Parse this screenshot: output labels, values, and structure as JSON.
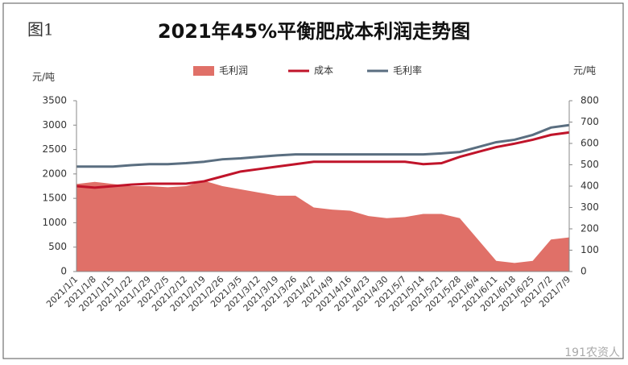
{
  "figure_label": "图1",
  "watermark": "191农资人",
  "chart_data": {
    "type": "combo",
    "title": "2021年45%平衡肥成本利润走势图",
    "ylabel": "元/吨",
    "y2label": "元/吨",
    "categories": [
      "2021/1/1",
      "2021/1/8",
      "2021/1/15",
      "2021/1/22",
      "2021/1/29",
      "2021/2/5",
      "2021/2/12",
      "2021/2/19",
      "2021/2/26",
      "2021/3/5",
      "2021/3/12",
      "2021/3/19",
      "2021/3/26",
      "2021/4/2",
      "2021/4/9",
      "2021/4/16",
      "2021/4/23",
      "2021/4/30",
      "2021/5/7",
      "2021/5/14",
      "2021/5/21",
      "2021/5/28",
      "2021/6/4",
      "2021/6/11",
      "2021/6/18",
      "2021/6/25",
      "2021/7/2",
      "2021/7/9"
    ],
    "series": [
      {
        "name": "毛利润",
        "kind": "area",
        "axis": "y2",
        "color": "#e07068",
        "values": [
          410,
          420,
          410,
          400,
          400,
          395,
          400,
          425,
          400,
          385,
          370,
          355,
          355,
          300,
          290,
          285,
          260,
          250,
          255,
          270,
          270,
          250,
          150,
          50,
          40,
          50,
          150,
          160
        ]
      },
      {
        "name": "成本",
        "kind": "line",
        "color": "#c0142a",
        "values": [
          1750,
          1720,
          1750,
          1780,
          1800,
          1800,
          1800,
          1850,
          1950,
          2050,
          2100,
          2150,
          2200,
          2250,
          2250,
          2250,
          2250,
          2250,
          2250,
          2200,
          2220,
          2350,
          2450,
          2550,
          2620,
          2700,
          2800,
          2850
        ]
      },
      {
        "name": "毛利率",
        "kind": "line",
        "color": "#5a6e80",
        "values": [
          2150,
          2150,
          2150,
          2180,
          2200,
          2200,
          2220,
          2250,
          2300,
          2320,
          2350,
          2380,
          2400,
          2400,
          2400,
          2400,
          2400,
          2400,
          2400,
          2400,
          2420,
          2450,
          2550,
          2650,
          2700,
          2800,
          2950,
          3000
        ]
      }
    ],
    "ylim": [
      0,
      3500
    ],
    "yticks": [
      0,
      500,
      1000,
      1500,
      2000,
      2500,
      3000,
      3500
    ],
    "y2lim": [
      0,
      800
    ],
    "y2ticks": [
      0,
      100,
      200,
      300,
      400,
      500,
      600,
      700,
      800
    ]
  }
}
